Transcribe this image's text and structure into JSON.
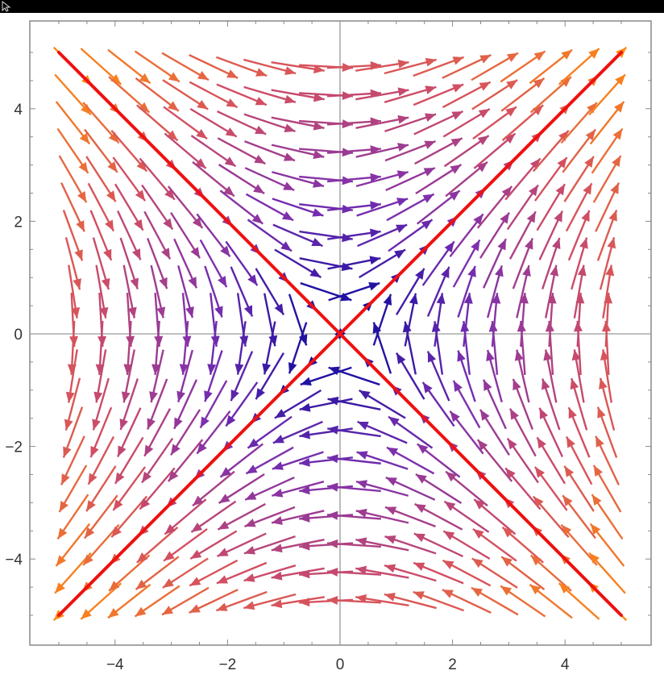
{
  "window": {
    "titlebar_color": "#000000"
  },
  "icons": {
    "cursor": "arrow-cursor-icon"
  },
  "chart_data": {
    "type": "vector-field",
    "title": "",
    "xlabel": "",
    "ylabel": "",
    "xlim": [
      -5,
      5
    ],
    "ylim": [
      -5,
      5
    ],
    "xticks": [
      -4,
      -2,
      0,
      2,
      4
    ],
    "yticks": [
      -4,
      -2,
      0,
      2,
      4
    ],
    "xtick_labels": [
      "−4",
      "−2",
      "0",
      "2",
      "4"
    ],
    "ytick_labels": [
      "4",
      "2",
      "0",
      "−2",
      "−4"
    ],
    "grid": false,
    "frame": true,
    "field": {
      "description_expr": "dx/dt = y, dy/dt = x (saddle)",
      "grid_x": [
        -4.75,
        -4.25,
        -3.75,
        -3.25,
        -2.75,
        -2.25,
        -1.75,
        -1.25,
        -0.75,
        -0.25,
        0.25,
        0.75,
        1.25,
        1.75,
        2.25,
        2.75,
        3.25,
        3.75,
        4.25,
        4.75
      ],
      "grid_y": [
        -4.75,
        -4.25,
        -3.75,
        -3.25,
        -2.75,
        -2.25,
        -1.75,
        -1.25,
        -0.75,
        -0.25,
        0.25,
        0.75,
        1.25,
        1.75,
        2.25,
        2.75,
        3.25,
        3.75,
        4.25,
        4.75
      ],
      "color_scale": [
        "#0b0a9e",
        "#7a2fb0",
        "#d24e63",
        "#ff8a12"
      ]
    },
    "series": [
      {
        "x": [
          -5,
          5
        ],
        "y": [
          -5,
          5
        ],
        "color": "#ee1111"
      },
      {
        "x": [
          -5,
          5
        ],
        "y": [
          5,
          -5
        ],
        "color": "#ee1111"
      }
    ]
  }
}
